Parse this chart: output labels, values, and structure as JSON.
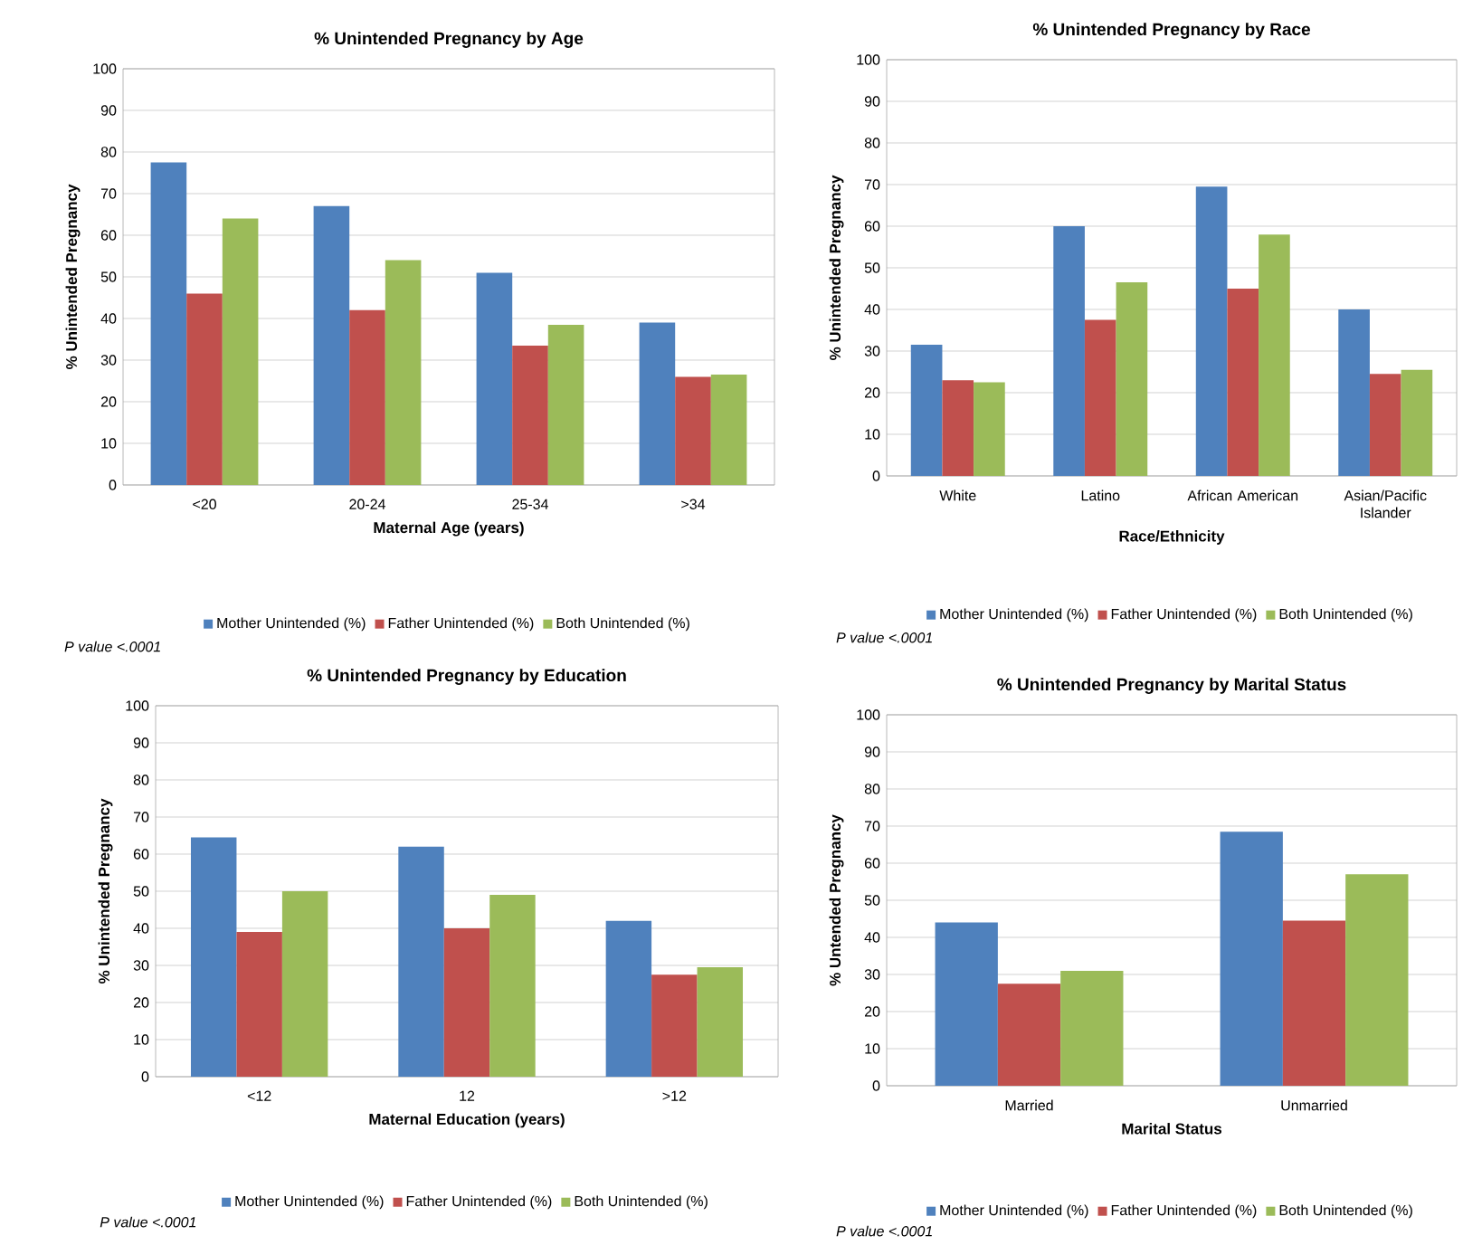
{
  "chart_data": [
    {
      "type": "bar",
      "title": "% Unintended Pregnancy by Age",
      "xlabel": "Maternal Age (years)",
      "ylabel": "% Unintended Pregnancy",
      "categories": [
        "<20",
        "20-24",
        "25-34",
        ">34"
      ],
      "series": [
        {
          "name": "Mother Unintended (%)",
          "color": "#4f81bd",
          "values": [
            77.5,
            67,
            51,
            39
          ]
        },
        {
          "name": "Father Unintended (%)",
          "color": "#c0504d",
          "values": [
            46,
            42,
            33.5,
            26
          ]
        },
        {
          "name": "Both Unintended (%)",
          "color": "#9bbb59",
          "values": [
            64,
            54,
            38.5,
            26.5
          ]
        }
      ],
      "ylim": [
        0,
        100
      ],
      "yticks": [
        0,
        10,
        20,
        30,
        40,
        50,
        60,
        70,
        80,
        90,
        100
      ],
      "grid": "y",
      "legend": "bottom",
      "annotations": [
        "P value <.0001"
      ]
    },
    {
      "type": "bar",
      "title": "% Unintended Pregnancy by Race",
      "xlabel": "Race/Ethnicity",
      "ylabel": "% Unintended Pregnancy",
      "categories": [
        "White",
        "Latino",
        "African American",
        "Asian/Pacific Islander"
      ],
      "series": [
        {
          "name": "Mother Unintended (%)",
          "color": "#4f81bd",
          "values": [
            31.5,
            60,
            69.5,
            40
          ]
        },
        {
          "name": "Father Unintended (%)",
          "color": "#c0504d",
          "values": [
            23,
            37.5,
            45,
            24.5
          ]
        },
        {
          "name": "Both Unintended (%)",
          "color": "#9bbb59",
          "values": [
            22.5,
            46.5,
            58,
            25.5
          ]
        }
      ],
      "ylim": [
        0,
        100
      ],
      "yticks": [
        0,
        10,
        20,
        30,
        40,
        50,
        60,
        70,
        80,
        90,
        100
      ],
      "grid": "y",
      "legend": "bottom",
      "annotations": [
        "P value <.0001"
      ]
    },
    {
      "type": "bar",
      "title": "% Unintended Pregnancy by Education",
      "xlabel": "Maternal Education (years)",
      "ylabel": "% Unintended Pregnancy",
      "categories": [
        "<12",
        "12",
        ">12"
      ],
      "series": [
        {
          "name": "Mother Unintended (%)",
          "color": "#4f81bd",
          "values": [
            64.5,
            62,
            42
          ]
        },
        {
          "name": "Father Unintended (%)",
          "color": "#c0504d",
          "values": [
            39,
            40,
            27.5
          ]
        },
        {
          "name": "Both Unintended (%)",
          "color": "#9bbb59",
          "values": [
            50,
            49,
            29.5
          ]
        }
      ],
      "ylim": [
        0,
        100
      ],
      "yticks": [
        0,
        10,
        20,
        30,
        40,
        50,
        60,
        70,
        80,
        90,
        100
      ],
      "grid": "y",
      "legend": "bottom",
      "annotations": [
        "P value <.0001"
      ]
    },
    {
      "type": "bar",
      "title": "% Unintended Pregnancy by Marital Status",
      "xlabel": "Marital Status",
      "ylabel": "% Untended Pregnancy",
      "categories": [
        "Married",
        "Unmarried"
      ],
      "series": [
        {
          "name": "Mother Unintended (%)",
          "color": "#4f81bd",
          "values": [
            44,
            68.5
          ]
        },
        {
          "name": "Father Unintended (%)",
          "color": "#c0504d",
          "values": [
            27.5,
            44.5
          ]
        },
        {
          "name": "Both Unintended (%)",
          "color": "#9bbb59",
          "values": [
            31,
            57
          ]
        }
      ],
      "ylim": [
        0,
        100
      ],
      "yticks": [
        0,
        10,
        20,
        30,
        40,
        50,
        60,
        70,
        80,
        90,
        100
      ],
      "grid": "y",
      "legend": "bottom",
      "annotations": [
        "P value <.0001"
      ]
    }
  ]
}
